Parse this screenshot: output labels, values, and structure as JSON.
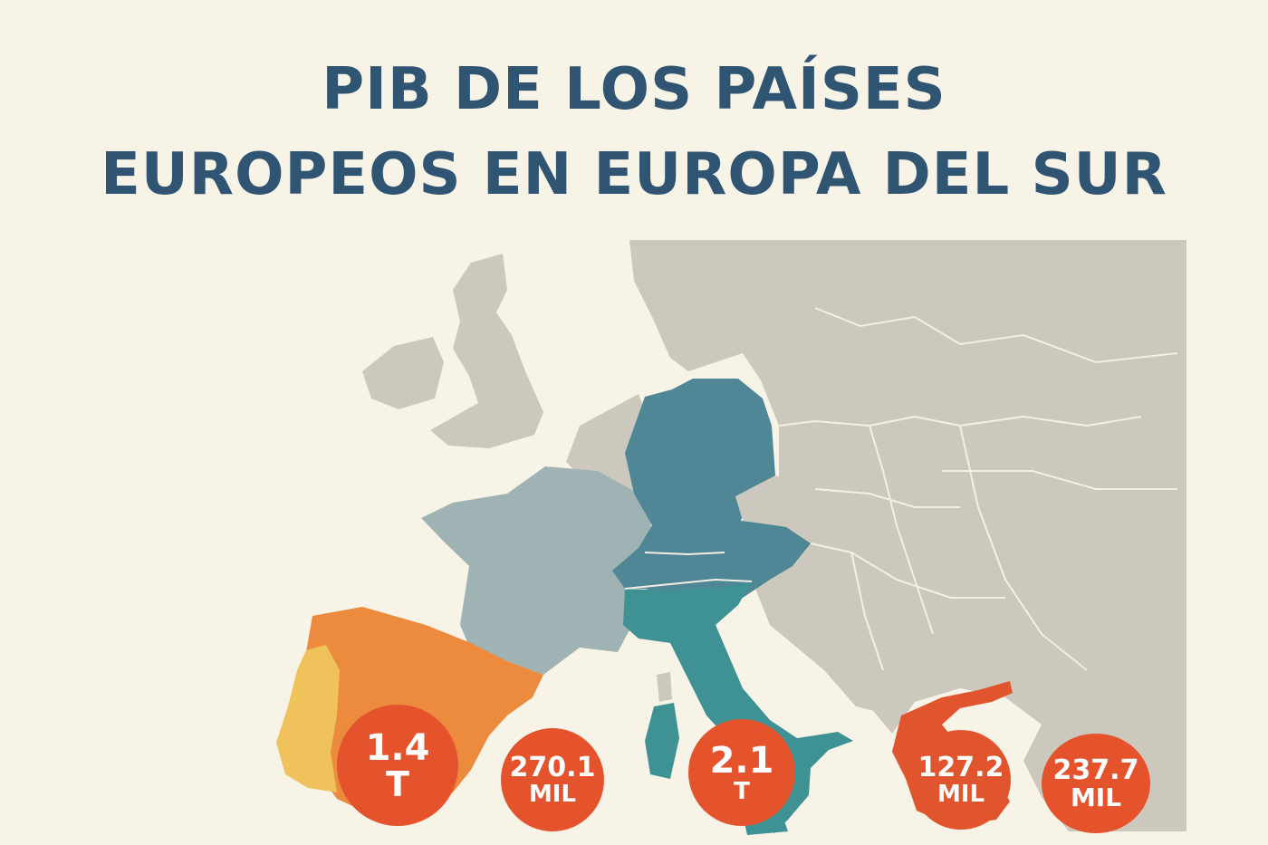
{
  "title": {
    "line1": "PIB DE LOS PAÍSES",
    "line2": "EUROPEOS EN EUROPA DEL SUR"
  },
  "colors": {
    "background": "#f8f3e7",
    "title": "#2f5573",
    "land": "#cdc8bd",
    "border": "#f3efe6",
    "portugal": "#efc25c",
    "spain": "#ec8a3e",
    "france": "#9fb3b4",
    "germany": "#4f8797",
    "italy": "#3e9294",
    "greece": "#e0552d",
    "bubble": "#e4532c"
  },
  "labels": [
    {
      "id": "spain",
      "value": "1.4",
      "unit": "T"
    },
    {
      "id": "portugal",
      "value": "270.1",
      "unit": "MIL"
    },
    {
      "id": "italy",
      "value": "2.1",
      "unit": "T"
    },
    {
      "id": "greece",
      "value": "127.2",
      "unit": "MIL"
    },
    {
      "id": "other",
      "value": "237.7",
      "unit": "MIL"
    }
  ]
}
